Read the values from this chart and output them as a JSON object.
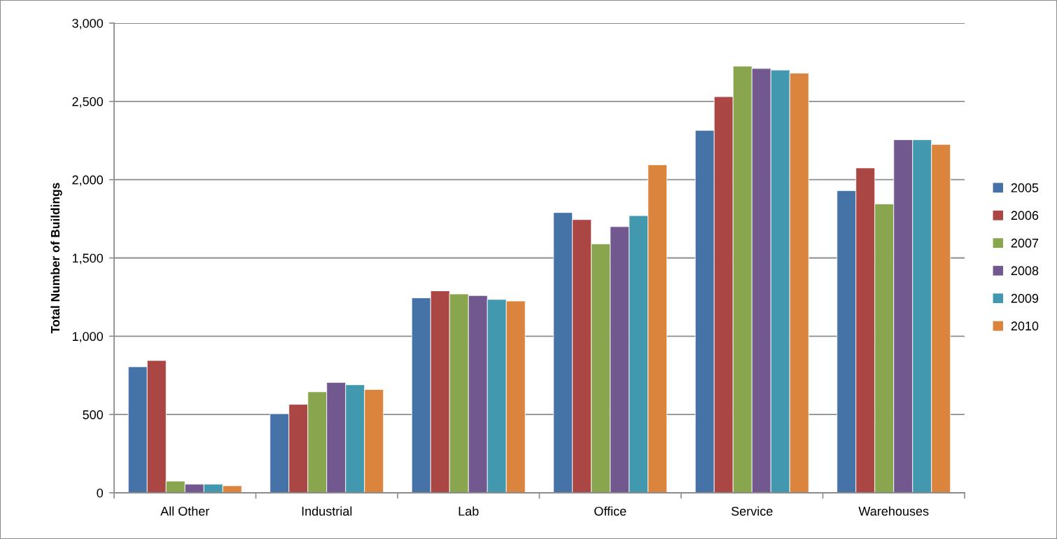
{
  "chart_data": {
    "type": "bar",
    "ylabel": "Total Number of Buildings",
    "categories": [
      "All Other",
      "Industrial",
      "Lab",
      "Office",
      "Service",
      "Warehouses"
    ],
    "series": [
      {
        "name": "2005",
        "color": "#4572a7",
        "values": [
          805,
          505,
          1245,
          1790,
          2315,
          1930
        ]
      },
      {
        "name": "2006",
        "color": "#aa4643",
        "values": [
          845,
          565,
          1290,
          1745,
          2530,
          2075
        ]
      },
      {
        "name": "2007",
        "color": "#89a54e",
        "values": [
          75,
          645,
          1270,
          1590,
          2725,
          1845
        ]
      },
      {
        "name": "2008",
        "color": "#71588f",
        "values": [
          55,
          705,
          1260,
          1700,
          2710,
          2255
        ]
      },
      {
        "name": "2009",
        "color": "#4198af",
        "values": [
          55,
          690,
          1235,
          1770,
          2700,
          2255
        ]
      },
      {
        "name": "2010",
        "color": "#db843d",
        "values": [
          45,
          660,
          1225,
          2095,
          2680,
          2225
        ]
      }
    ],
    "ylim": [
      0,
      3000
    ],
    "yticks": [
      {
        "value": 0,
        "label": "0"
      },
      {
        "value": 500,
        "label": "500"
      },
      {
        "value": 1000,
        "label": "1,000"
      },
      {
        "value": 1500,
        "label": "1,500"
      },
      {
        "value": 2000,
        "label": "2,000"
      },
      {
        "value": 2500,
        "label": "2,500"
      },
      {
        "value": 3000,
        "label": "3,000"
      }
    ],
    "grid": "y",
    "legend": "right"
  }
}
